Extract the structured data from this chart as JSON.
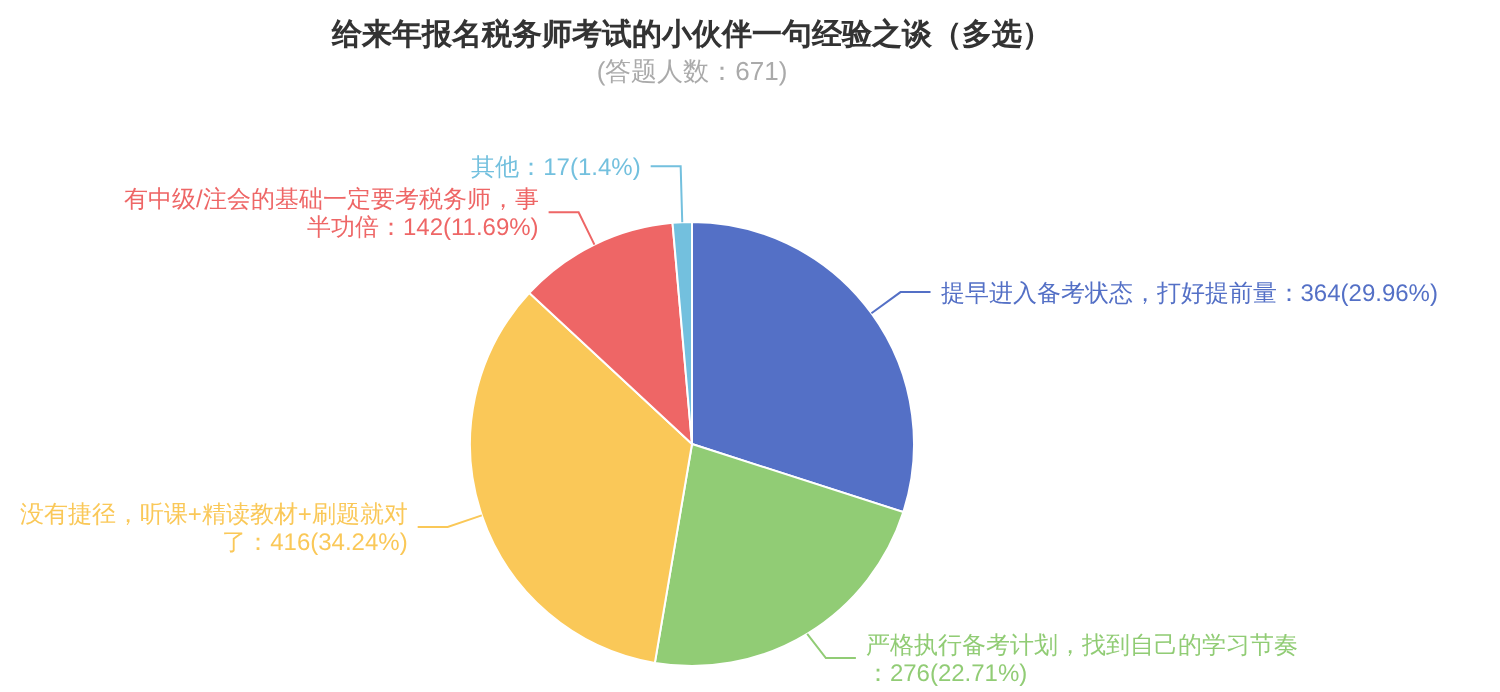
{
  "chart_data": {
    "type": "pie",
    "title": "给来年报名税务师考试的小伙伴一句经验之谈（多选）",
    "subtitle": "(答题人数：671)",
    "categories": [
      "提早进入备考状态，打好提前量",
      "严格执行备考计划，找到自己的学习节奏",
      "没有捷径，听课+精读教材+刷题就对了",
      "有中级/注会的基础一定要考税务师，事半功倍",
      "其他"
    ],
    "values": [
      364,
      276,
      416,
      142,
      17
    ],
    "value_labels": [
      "：364(29.96%)",
      "：276(22.71%)",
      "：416(34.24%)",
      "：142(11.69%)",
      "：17(1.4%)"
    ],
    "colors": [
      "#5470c6",
      "#91cc75",
      "#fac858",
      "#ee6666",
      "#73c0de"
    ]
  }
}
